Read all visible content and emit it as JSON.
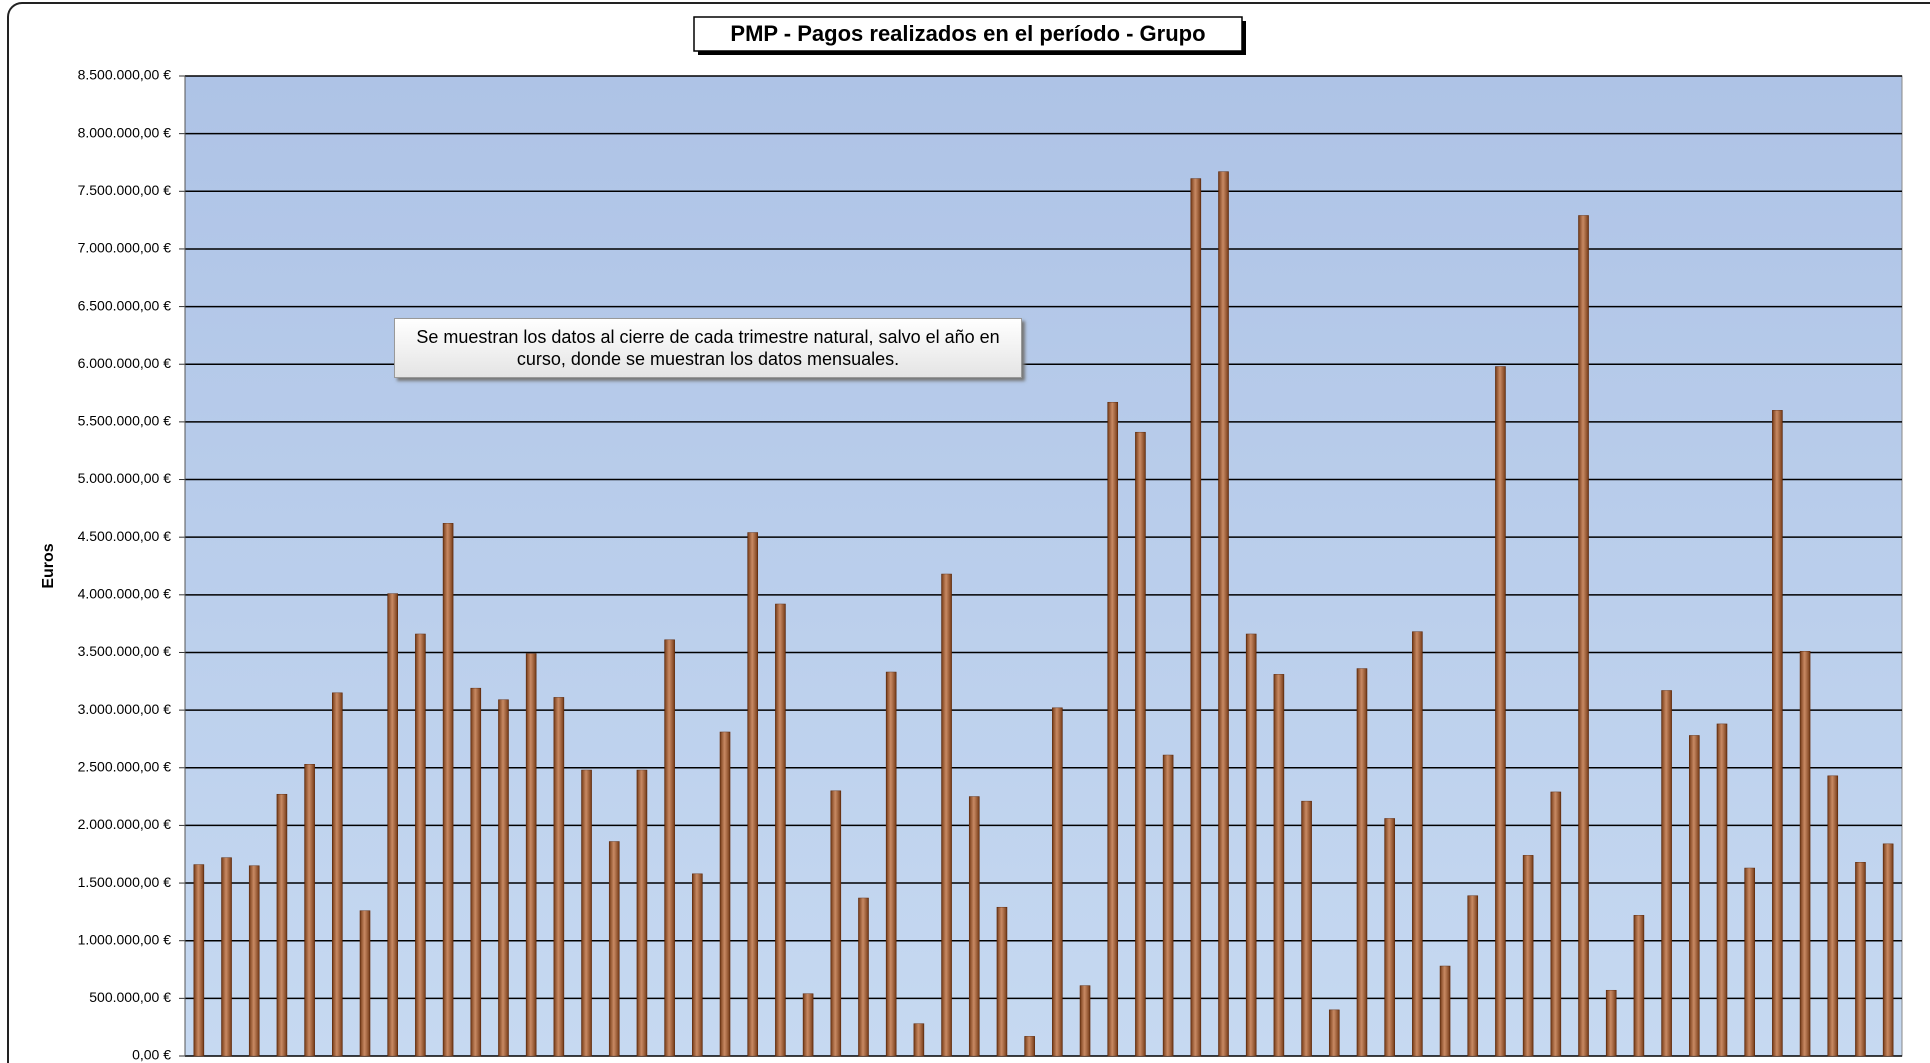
{
  "chart_data": {
    "type": "bar",
    "title": "PMP - Pagos realizados en el período - Grupo",
    "y_label": "Euros",
    "annotation": "Se muestran los datos al cierre de cada trimestre natural, salvo el año en curso, donde se muestran los datos mensuales.",
    "categories": [
      null,
      null,
      null,
      null,
      null,
      null,
      null,
      null,
      null,
      null,
      null,
      null,
      null,
      null,
      null,
      null,
      null,
      null,
      null,
      null,
      null,
      null,
      null,
      null,
      null,
      null,
      null,
      null,
      null,
      null,
      null,
      null,
      null,
      null,
      null,
      null,
      null,
      null,
      null,
      null,
      null,
      null,
      null,
      null,
      null,
      null,
      null,
      null,
      null,
      null,
      null,
      null,
      null,
      null,
      null,
      null,
      null,
      null,
      null,
      null,
      null,
      null
    ],
    "values": [
      1660000,
      1720000,
      1650000,
      2270000,
      2530000,
      3150000,
      1260000,
      4010000,
      3660000,
      4620000,
      3190000,
      3090000,
      3490000,
      3110000,
      2480000,
      1860000,
      2480000,
      3610000,
      1580000,
      2810000,
      4540000,
      3920000,
      540000,
      2300000,
      1370000,
      3330000,
      280000,
      4180000,
      2250000,
      1290000,
      170000,
      3020000,
      610000,
      5670000,
      5410000,
      2610000,
      7610000,
      7670000,
      3660000,
      3310000,
      2210000,
      400000,
      3360000,
      2060000,
      3680000,
      780000,
      1390000,
      5980000,
      1740000,
      2290000,
      7290000,
      570000,
      1220000,
      3170000,
      2780000,
      2880000,
      1630000,
      5600000,
      3510000,
      2430000,
      1680000,
      1840000
    ],
    "color": "#b0561f",
    "ylim": [
      0,
      8500000
    ],
    "yticks": [
      {
        "value": 0,
        "label": "0,00 €"
      },
      {
        "value": 500000,
        "label": "500.000,00 €"
      },
      {
        "value": 1000000,
        "label": "1.000.000,00 €"
      },
      {
        "value": 1500000,
        "label": "1.500.000,00 €"
      },
      {
        "value": 2000000,
        "label": "2.000.000,00 €"
      },
      {
        "value": 2500000,
        "label": "2.500.000,00 €"
      },
      {
        "value": 3000000,
        "label": "3.000.000,00 €"
      },
      {
        "value": 3500000,
        "label": "3.500.000,00 €"
      },
      {
        "value": 4000000,
        "label": "4.000.000,00 €"
      },
      {
        "value": 4500000,
        "label": "4.500.000,00 €"
      },
      {
        "value": 5000000,
        "label": "5.000.000,00 €"
      },
      {
        "value": 5500000,
        "label": "5.500.000,00 €"
      },
      {
        "value": 6000000,
        "label": "6.000.000,00 €"
      },
      {
        "value": 6500000,
        "label": "6.500.000,00 €"
      },
      {
        "value": 7000000,
        "label": "7.000.000,00 €"
      },
      {
        "value": 7500000,
        "label": "7.500.000,00 €"
      },
      {
        "value": 8000000,
        "label": "8.000.000,00 €"
      },
      {
        "value": 8500000,
        "label": "8.500.000,00 €"
      }
    ],
    "grid": true
  }
}
